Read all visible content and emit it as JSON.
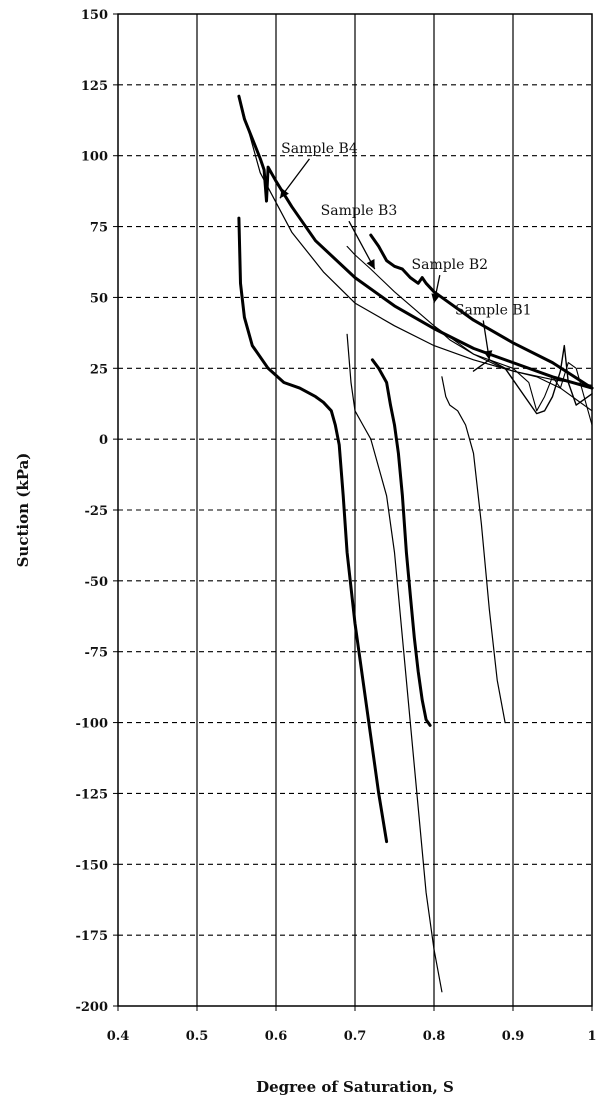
{
  "chart_data": {
    "type": "line",
    "xlabel": "Degree of Saturation, S",
    "ylabel": "Suction (kPa)",
    "xlim": [
      0.4,
      1.0
    ],
    "ylim": [
      -200,
      150
    ],
    "xticks": [
      0.4,
      0.5,
      0.6,
      0.7,
      0.8,
      0.9,
      1.0
    ],
    "xtick_labels": [
      "0.4",
      "0.5",
      "0.6",
      "0.7",
      "0.8",
      "0.9",
      "1"
    ],
    "yticks": [
      150,
      125,
      100,
      75,
      50,
      25,
      0,
      -25,
      -50,
      -75,
      -100,
      -125,
      -150,
      -175,
      -200
    ],
    "ytick_labels": [
      "150",
      "125",
      "100",
      "75",
      "50",
      "25",
      "0",
      "-25",
      "-50",
      "-75",
      "-100",
      "-125",
      "-150",
      "-175",
      "-200"
    ],
    "grid": {
      "x": "solid",
      "y": "dashed"
    },
    "annotations": [
      {
        "text": "Sample B4",
        "x": 0.655,
        "y": 101,
        "arrow_to": [
          0.605,
          85
        ]
      },
      {
        "text": "Sample B3",
        "x": 0.705,
        "y": 79,
        "arrow_to": [
          0.725,
          60
        ]
      },
      {
        "text": "Sample B2",
        "x": 0.82,
        "y": 60,
        "arrow_to": [
          0.8,
          48
        ]
      },
      {
        "text": "Sample B1",
        "x": 0.875,
        "y": 44,
        "arrow_to": [
          0.87,
          28
        ]
      }
    ],
    "series": [
      {
        "width": 3.0,
        "x": [
          0.553,
          0.56,
          0.57,
          0.58,
          0.585,
          0.588,
          0.59,
          0.6,
          0.62,
          0.65,
          0.7,
          0.75,
          0.8,
          0.85,
          0.9,
          0.95,
          1.0
        ],
        "y": [
          121,
          113,
          106,
          99,
          95,
          84,
          96,
          91,
          82,
          70,
          57,
          47,
          39,
          32,
          27,
          22,
          18
        ]
      },
      {
        "width": 1.2,
        "x": [
          0.553,
          0.58,
          0.62,
          0.66,
          0.7,
          0.75,
          0.8,
          0.85,
          0.9,
          0.95,
          1.0
        ],
        "y": [
          121,
          94,
          73,
          59,
          48,
          40,
          33,
          28,
          24,
          21,
          19
        ]
      },
      {
        "width": 3.0,
        "x": [
          0.72,
          0.73,
          0.74,
          0.75,
          0.76,
          0.77,
          0.78,
          0.785,
          0.79,
          0.8,
          0.85,
          0.9,
          0.95,
          1.0
        ],
        "y": [
          72,
          68,
          63,
          61,
          60,
          57,
          55,
          57,
          55,
          52,
          42,
          34,
          27,
          18
        ]
      },
      {
        "width": 1.1,
        "x": [
          0.69,
          0.7,
          0.72,
          0.75,
          0.8,
          0.85,
          0.88,
          0.9,
          0.93,
          0.96,
          0.98,
          1.0
        ],
        "y": [
          68,
          65,
          60,
          52,
          40,
          30,
          26,
          24,
          22,
          18,
          14,
          10
        ]
      },
      {
        "width": 1.1,
        "x": [
          0.8,
          0.82,
          0.85,
          0.88,
          0.9,
          0.92,
          0.93,
          0.94,
          0.95,
          0.96,
          0.97,
          0.98,
          1.0
        ],
        "y": [
          40,
          35,
          30,
          27,
          25,
          20,
          10,
          15,
          22,
          18,
          27,
          25,
          5
        ]
      },
      {
        "width": 1.4,
        "x": [
          0.85,
          0.87,
          0.89,
          0.91,
          0.93,
          0.94,
          0.95,
          0.96,
          0.965,
          0.97,
          0.98,
          1.0
        ],
        "y": [
          24,
          28,
          25,
          17,
          9,
          10,
          15,
          24,
          33,
          20,
          12,
          16
        ]
      },
      {
        "width": 3.0,
        "x": [
          0.553,
          0.555,
          0.56,
          0.57,
          0.59,
          0.61,
          0.63,
          0.65,
          0.66,
          0.67,
          0.675,
          0.68,
          0.685,
          0.69,
          0.7,
          0.71,
          0.72,
          0.73,
          0.74
        ],
        "y": [
          78,
          55,
          43,
          33,
          25,
          20,
          18,
          15,
          13,
          10,
          5,
          -2,
          -20,
          -40,
          -65,
          -85,
          -105,
          -125,
          -142
        ]
      },
      {
        "width": 3.0,
        "x": [
          0.722,
          0.73,
          0.74,
          0.745,
          0.75,
          0.755,
          0.76,
          0.765,
          0.77,
          0.775,
          0.78,
          0.785,
          0.79,
          0.795
        ],
        "y": [
          28,
          25,
          20,
          12,
          5,
          -5,
          -20,
          -40,
          -55,
          -70,
          -82,
          -92,
          -99,
          -101
        ]
      },
      {
        "width": 1.2,
        "x": [
          0.69,
          0.695,
          0.7,
          0.71,
          0.72,
          0.73,
          0.74,
          0.75,
          0.76,
          0.77,
          0.78,
          0.79,
          0.8,
          0.81
        ],
        "y": [
          37,
          20,
          10,
          5,
          0,
          -10,
          -20,
          -40,
          -70,
          -100,
          -130,
          -160,
          -180,
          -195
        ]
      },
      {
        "width": 1.2,
        "x": [
          0.81,
          0.815,
          0.82,
          0.83,
          0.84,
          0.85,
          0.86,
          0.87,
          0.88,
          0.89
        ],
        "y": [
          22,
          15,
          12,
          10,
          5,
          -5,
          -30,
          -60,
          -85,
          -100
        ]
      }
    ]
  }
}
